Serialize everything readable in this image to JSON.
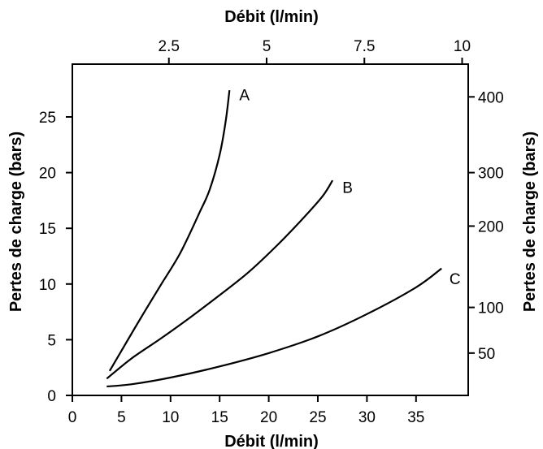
{
  "chart_data": {
    "type": "line",
    "x_bottom": {
      "label": "Débit (l/min)",
      "range": [
        0,
        40
      ],
      "ticks": [
        0,
        5,
        10,
        15,
        20,
        25,
        30,
        35
      ],
      "tick_labels": [
        "0",
        "5",
        "10",
        "15",
        "20",
        "25",
        "30",
        "35"
      ]
    },
    "x_top": {
      "label": "Débit (l/min)",
      "range": [
        0,
        10
      ],
      "ticks": [
        2.5,
        5,
        7.5,
        10
      ],
      "tick_labels": [
        "2.5",
        "5",
        "7.5",
        "10"
      ]
    },
    "y_left": {
      "label": "Pertes de charge (bars)",
      "range": [
        0,
        30
      ],
      "ticks": [
        0,
        5,
        10,
        15,
        20,
        25
      ],
      "tick_labels": [
        "0",
        "5",
        "10",
        "15",
        "20",
        "25"
      ]
    },
    "y_right": {
      "label": "Pertes de charge (bars)",
      "ticks": [
        50,
        100,
        200,
        300,
        400
      ],
      "tick_labels": [
        "50",
        "100",
        "200",
        "300",
        "400"
      ],
      "left_axis_equivalent": [
        3.8,
        7.9,
        15.2,
        20.0,
        26.8
      ]
    },
    "series": [
      {
        "name": "A",
        "x": [
          3.8,
          5,
          7,
          9,
          11,
          13,
          14,
          15,
          15.6,
          16.0
        ],
        "y": [
          2.2,
          4.0,
          7.0,
          9.9,
          12.8,
          16.5,
          18.5,
          21.6,
          24.5,
          27.4
        ]
      },
      {
        "name": "B",
        "x": [
          3.5,
          6,
          9,
          12,
          15,
          18,
          21,
          23.5,
          25.5,
          26.5
        ],
        "y": [
          1.5,
          3.3,
          5.1,
          7.0,
          9.0,
          11.1,
          13.6,
          15.9,
          17.9,
          19.3
        ]
      },
      {
        "name": "C",
        "x": [
          3.5,
          6,
          10,
          15,
          20,
          25,
          30,
          35,
          37.6
        ],
        "y": [
          0.8,
          1.0,
          1.6,
          2.6,
          3.8,
          5.3,
          7.3,
          9.7,
          11.4
        ]
      }
    ],
    "annotations": [
      {
        "text": "A",
        "x": 17.0,
        "y": 27.0
      },
      {
        "text": "B",
        "x": 27.5,
        "y": 18.7
      },
      {
        "text": "C",
        "x": 38.4,
        "y": 10.5
      }
    ],
    "grid": false,
    "legend": "none"
  }
}
